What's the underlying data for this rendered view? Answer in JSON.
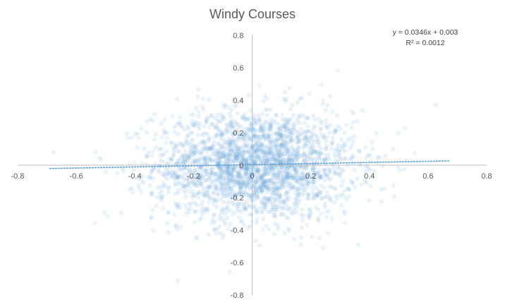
{
  "chart_data": {
    "type": "scatter",
    "title": "Windy Courses",
    "xlabel": "",
    "ylabel": "",
    "xlim": [
      -0.8,
      0.8
    ],
    "ylim": [
      -0.8,
      0.8
    ],
    "x_ticks": [
      "-0.8",
      "-0.6",
      "-0.4",
      "-0.2",
      "0",
      "0.2",
      "0.4",
      "0.6",
      "0.8"
    ],
    "y_ticks": [
      "0.8",
      "0.6",
      "0.4",
      "0.2",
      "0",
      "-0.2",
      "-0.4",
      "-0.6",
      "-0.8"
    ],
    "series": [
      {
        "marker_color": "#5b9bd5",
        "marker_opacity": 0.12,
        "approx_point_count": 2500,
        "distribution": "dense cluster centered near (0.01, 0.0), spreading roughly ±0.5 on x and ±0.6 on y",
        "x_center": 0.01,
        "y_center": 0.0,
        "x_spread": 0.17,
        "y_spread": 0.17
      }
    ],
    "trendline": {
      "type": "linear",
      "slope": 0.0346,
      "intercept": 0.003,
      "x_range": [
        -0.69,
        0.67
      ],
      "color": "#5b9bd5",
      "style": "dotted",
      "equation": "y = 0.0346x + 0.003",
      "r_squared": "R² = 0.0012"
    },
    "grid": false,
    "legend": "none"
  }
}
